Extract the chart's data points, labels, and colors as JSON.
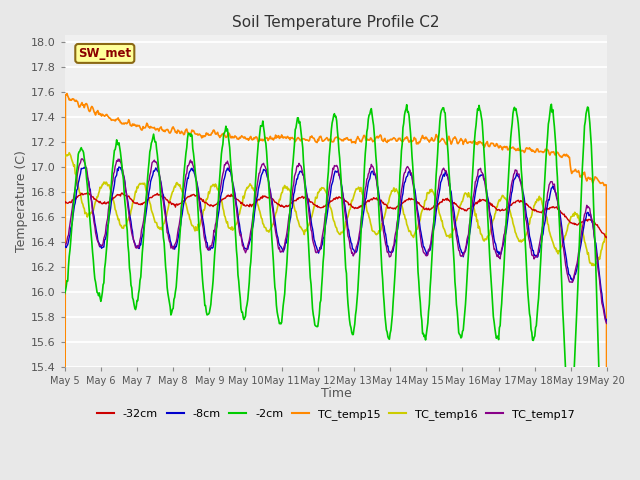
{
  "title": "Soil Temperature Profile C2",
  "xlabel": "Time",
  "ylabel": "Temperature (C)",
  "ylim": [
    15.4,
    18.05
  ],
  "yticks": [
    15.4,
    15.6,
    15.8,
    16.0,
    16.2,
    16.4,
    16.6,
    16.8,
    17.0,
    17.2,
    17.4,
    17.6,
    17.8,
    18.0
  ],
  "bg_color": "#e8e8e8",
  "plot_bg": "#f0f0f0",
  "annotation": "SW_met",
  "annotation_color": "#8b0000",
  "annotation_bg": "#ffff99",
  "annotation_border": "#8b6914",
  "colors": {
    "depth_32cm": "#cc0000",
    "depth_8cm": "#0000cc",
    "depth_2cm": "#00cc00",
    "TC_temp15": "#ff8800",
    "TC_temp16": "#cccc00",
    "TC_temp17": "#880088"
  },
  "legend_labels": [
    "-32cm",
    "-8cm",
    "-2cm",
    "TC_temp15",
    "TC_temp16",
    "TC_temp17"
  ],
  "xtick_labels": [
    "May 5",
    "May 6",
    "May 7",
    "May 8",
    "May 9",
    "May 10",
    "May 11",
    "May 12",
    "May 13",
    "May 14",
    "May 15",
    "May 16",
    "May 17",
    "May 18",
    "May 19",
    "May 20"
  ],
  "num_points": 721,
  "figwidth": 6.4,
  "figheight": 4.8,
  "dpi": 100
}
